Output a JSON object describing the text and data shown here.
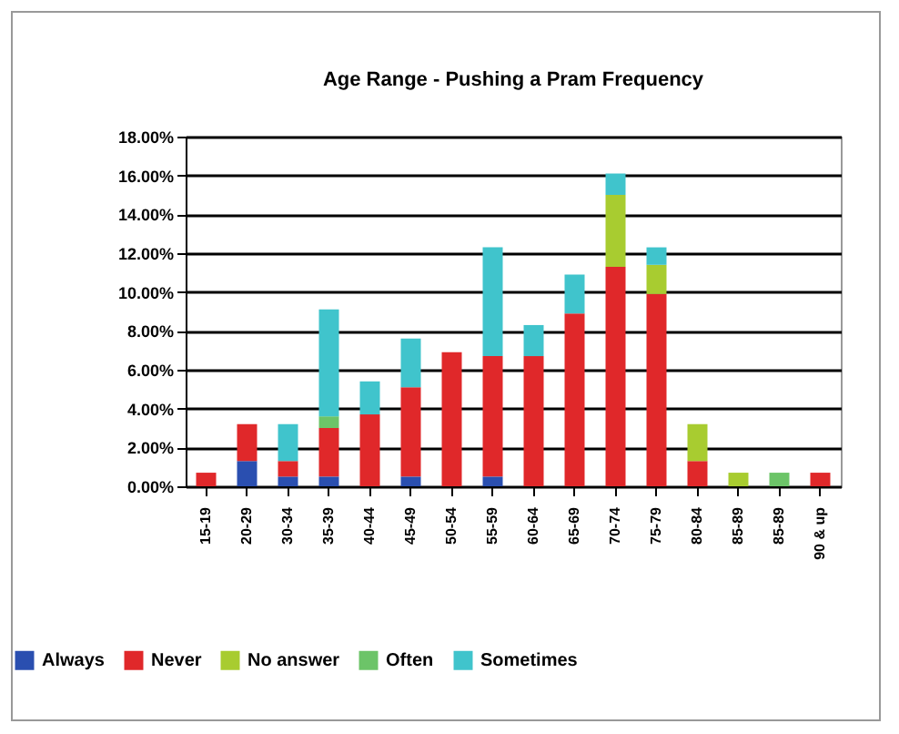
{
  "chart_data": {
    "type": "bar",
    "title": "Age Range - Pushing a Pram Frequency",
    "stacked": true,
    "grid": "y",
    "legend": "bottom",
    "categories": [
      "15-19",
      "20-29",
      "30-34",
      "35-39",
      "40-44",
      "45-49",
      "50-54",
      "55-59",
      "60-64",
      "65-69",
      "70-74",
      "75-79",
      "80-84",
      "85-89",
      "85-89",
      "90 & up"
    ],
    "ylim": [
      0,
      18
    ],
    "yticks": [
      {
        "value": 0,
        "label": "0.00%"
      },
      {
        "value": 2,
        "label": "2.00%"
      },
      {
        "value": 4,
        "label": "4.00%"
      },
      {
        "value": 6,
        "label": "6.00%"
      },
      {
        "value": 8,
        "label": "8.00%"
      },
      {
        "value": 10,
        "label": "10.00%"
      },
      {
        "value": 12,
        "label": "12.00%"
      },
      {
        "value": 14,
        "label": "14.00%"
      },
      {
        "value": 16,
        "label": "16.00%"
      },
      {
        "value": 18,
        "label": "18.00%"
      }
    ],
    "series": [
      {
        "name": "Always",
        "color": "#2a4fb0",
        "values": [
          null,
          1.3,
          0.5,
          0.5,
          null,
          0.5,
          null,
          0.5,
          null,
          null,
          null,
          null,
          null,
          null,
          null,
          null
        ]
      },
      {
        "name": "Never",
        "color": "#e0282a",
        "values": [
          0.7,
          1.9,
          0.8,
          2.5,
          3.7,
          4.6,
          6.9,
          6.2,
          6.7,
          8.9,
          11.3,
          9.9,
          1.3,
          null,
          null,
          0.7
        ]
      },
      {
        "name": "No answer",
        "color": "#a8cc30",
        "values": [
          null,
          null,
          null,
          null,
          null,
          null,
          null,
          null,
          null,
          null,
          3.7,
          1.5,
          1.9,
          0.7,
          null,
          null
        ]
      },
      {
        "name": "Often",
        "color": "#6cc468",
        "values": [
          null,
          null,
          null,
          0.6,
          null,
          null,
          null,
          null,
          null,
          null,
          null,
          null,
          null,
          null,
          0.7,
          null
        ]
      },
      {
        "name": "Sometimes",
        "color": "#40c4cc",
        "values": [
          null,
          null,
          1.9,
          5.5,
          1.7,
          2.5,
          null,
          5.6,
          1.6,
          2.0,
          1.1,
          0.9,
          null,
          null,
          null,
          null
        ]
      }
    ]
  }
}
